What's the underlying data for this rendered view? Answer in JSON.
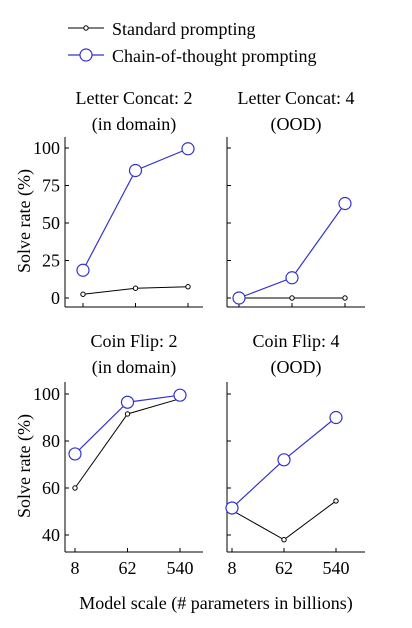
{
  "legend": {
    "entries": [
      {
        "name": "Standard prompting",
        "color": "#000000",
        "marker": "small-circle"
      },
      {
        "name": "Chain-of-thought prompting",
        "color": "#3333cc",
        "marker": "large-circle"
      }
    ]
  },
  "xlabel": "Model scale (# parameters in billions)",
  "ylabel": "Solve rate (%)",
  "chart_data": [
    {
      "type": "line",
      "title_lines": [
        "Letter Concat: 2",
        "(in domain)"
      ],
      "categories": [
        "8",
        "62",
        "540"
      ],
      "ylim": [
        0,
        100
      ],
      "yticks": [
        0,
        25,
        50,
        75,
        100
      ],
      "grid": false,
      "series": [
        {
          "name": "Standard prompting",
          "values": [
            2.5,
            6.5,
            7.5
          ]
        },
        {
          "name": "Chain-of-thought prompting",
          "values": [
            18.5,
            85,
            99.5
          ]
        }
      ]
    },
    {
      "type": "line",
      "title_lines": [
        "Letter Concat: 4",
        "(OOD)"
      ],
      "categories": [
        "8",
        "62",
        "540"
      ],
      "ylim": [
        0,
        100
      ],
      "yticks": [
        0,
        25,
        50,
        75,
        100
      ],
      "grid": false,
      "series": [
        {
          "name": "Standard prompting",
          "values": [
            0,
            0,
            0
          ]
        },
        {
          "name": "Chain-of-thought prompting",
          "values": [
            0,
            13.5,
            63
          ]
        }
      ]
    },
    {
      "type": "line",
      "title_lines": [
        "Coin Flip: 2",
        "(in domain)"
      ],
      "categories": [
        "8",
        "62",
        "540"
      ],
      "ylim": [
        40,
        100
      ],
      "yticks": [
        40,
        60,
        80,
        100
      ],
      "grid": false,
      "series": [
        {
          "name": "Standard prompting",
          "values": [
            60,
            91.5,
            98
          ]
        },
        {
          "name": "Chain-of-thought prompting",
          "values": [
            74.5,
            96.5,
            99.5
          ]
        }
      ]
    },
    {
      "type": "line",
      "title_lines": [
        "Coin Flip: 4",
        "(OOD)"
      ],
      "categories": [
        "8",
        "62",
        "540"
      ],
      "ylim": [
        40,
        100
      ],
      "yticks": [
        40,
        60,
        80,
        100
      ],
      "grid": false,
      "series": [
        {
          "name": "Standard prompting",
          "values": [
            50.5,
            38,
            54.5
          ]
        },
        {
          "name": "Chain-of-thought prompting",
          "values": [
            51.5,
            72,
            90
          ]
        }
      ]
    }
  ]
}
